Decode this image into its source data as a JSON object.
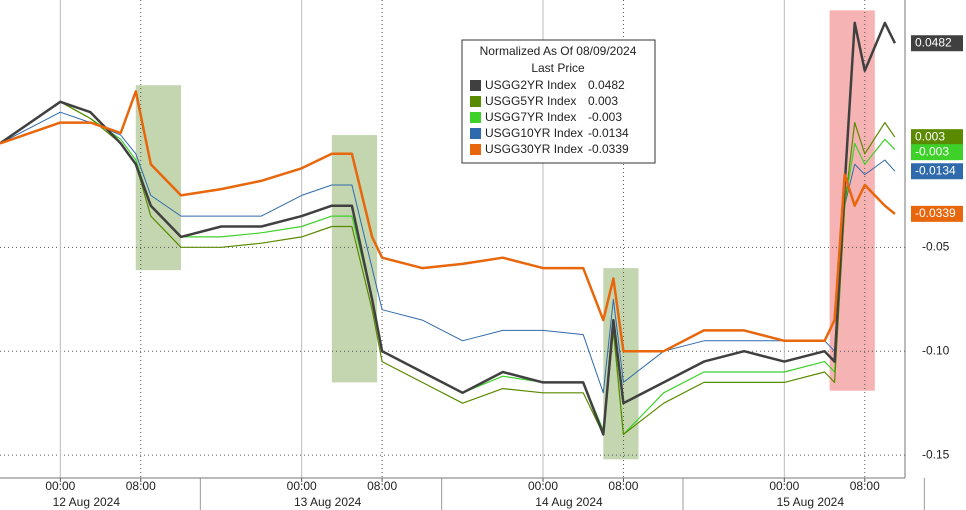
{
  "chart_data": {
    "type": "line",
    "legend_title": "Normalized As Of 08/09/2024",
    "legend_subtitle": "Last Price",
    "x": [
      "2024-08-11T18:00",
      "2024-08-12T00:00",
      "2024-08-12T03:00",
      "2024-08-12T06:00",
      "2024-08-12T07:30",
      "2024-08-12T09:00",
      "2024-08-12T12:00",
      "2024-08-12T16:00",
      "2024-08-12T20:00",
      "2024-08-13T00:00",
      "2024-08-13T03:00",
      "2024-08-13T05:00",
      "2024-08-13T07:00",
      "2024-08-13T08:00",
      "2024-08-13T12:00",
      "2024-08-13T16:00",
      "2024-08-13T20:00",
      "2024-08-14T00:00",
      "2024-08-14T04:00",
      "2024-08-14T06:00",
      "2024-08-14T07:00",
      "2024-08-14T08:00",
      "2024-08-14T12:00",
      "2024-08-14T16:00",
      "2024-08-14T20:00",
      "2024-08-15T00:00",
      "2024-08-15T04:00",
      "2024-08-15T05:00",
      "2024-08-15T06:00",
      "2024-08-15T07:00",
      "2024-08-15T08:00",
      "2024-08-15T10:00",
      "2024-08-15T11:00"
    ],
    "series": [
      {
        "name": "USGG2YR Index",
        "color": "#404040",
        "width": 2.5,
        "last": 0.0482,
        "values": [
          0,
          0.02,
          0.015,
          0.0,
          -0.01,
          -0.03,
          -0.045,
          -0.04,
          -0.04,
          -0.035,
          -0.03,
          -0.03,
          -0.075,
          -0.1,
          -0.11,
          -0.12,
          -0.11,
          -0.115,
          -0.115,
          -0.14,
          -0.085,
          -0.125,
          -0.115,
          -0.105,
          -0.1,
          -0.105,
          -0.1,
          -0.105,
          -0.02,
          0.058,
          0.035,
          0.058,
          0.0482
        ]
      },
      {
        "name": "USGG5YR Index",
        "color": "#5a8a00",
        "width": 1.2,
        "last": 0.003,
        "values": [
          0,
          0.02,
          0.012,
          0.0,
          -0.01,
          -0.035,
          -0.05,
          -0.05,
          -0.048,
          -0.045,
          -0.04,
          -0.04,
          -0.08,
          -0.105,
          -0.115,
          -0.125,
          -0.118,
          -0.12,
          -0.12,
          -0.14,
          -0.09,
          -0.14,
          -0.125,
          -0.115,
          -0.115,
          -0.115,
          -0.11,
          -0.115,
          -0.03,
          0.01,
          -0.005,
          0.01,
          0.003
        ]
      },
      {
        "name": "USGG7YR Index",
        "color": "#3ed12a",
        "width": 1.2,
        "last": -0.003,
        "values": [
          0,
          0.02,
          0.012,
          0.002,
          -0.008,
          -0.03,
          -0.045,
          -0.045,
          -0.043,
          -0.04,
          -0.035,
          -0.035,
          -0.075,
          -0.1,
          -0.11,
          -0.12,
          -0.112,
          -0.115,
          -0.115,
          -0.138,
          -0.09,
          -0.14,
          -0.12,
          -0.11,
          -0.11,
          -0.11,
          -0.105,
          -0.11,
          -0.03,
          0.0,
          -0.01,
          0.002,
          -0.003
        ]
      },
      {
        "name": "USGG10YR Index",
        "color": "#2f6aad",
        "width": 1,
        "last": -0.0134,
        "values": [
          0,
          0.015,
          0.01,
          0.004,
          -0.005,
          -0.025,
          -0.035,
          -0.035,
          -0.035,
          -0.025,
          -0.02,
          -0.02,
          -0.06,
          -0.08,
          -0.085,
          -0.095,
          -0.09,
          -0.09,
          -0.092,
          -0.12,
          -0.075,
          -0.115,
          -0.1,
          -0.095,
          -0.095,
          -0.095,
          -0.095,
          -0.1,
          -0.03,
          -0.01,
          -0.015,
          -0.008,
          -0.0134
        ]
      },
      {
        "name": "USGG30YR Index",
        "color": "#e8670c",
        "width": 2.5,
        "last": -0.0339,
        "values": [
          0,
          0.01,
          0.01,
          0.005,
          0.025,
          -0.01,
          -0.025,
          -0.022,
          -0.018,
          -0.012,
          -0.005,
          -0.005,
          -0.045,
          -0.055,
          -0.06,
          -0.058,
          -0.055,
          -0.06,
          -0.06,
          -0.085,
          -0.065,
          -0.1,
          -0.1,
          -0.09,
          -0.09,
          -0.095,
          -0.095,
          -0.085,
          -0.015,
          -0.03,
          -0.02,
          -0.03,
          -0.0339
        ]
      }
    ],
    "xlim": [
      "2024-08-11T18:00",
      "2024-08-15T12:00"
    ],
    "xticks": [
      {
        "value": "2024-08-12T00:00",
        "label": "00:00"
      },
      {
        "value": "2024-08-12T08:00",
        "label": "08:00"
      },
      {
        "value": "2024-08-13T00:00",
        "label": "00:00"
      },
      {
        "value": "2024-08-13T08:00",
        "label": "08:00"
      },
      {
        "value": "2024-08-14T00:00",
        "label": "00:00"
      },
      {
        "value": "2024-08-14T08:00",
        "label": "08:00"
      },
      {
        "value": "2024-08-15T00:00",
        "label": "00:00"
      },
      {
        "value": "2024-08-15T08:00",
        "label": "08:00"
      }
    ],
    "dates": [
      {
        "value": "2024-08-12T00:00",
        "label": "12 Aug 2024"
      },
      {
        "value": "2024-08-13T00:00",
        "label": "13 Aug 2024"
      },
      {
        "value": "2024-08-14T00:00",
        "label": "14 Aug 2024"
      },
      {
        "value": "2024-08-15T00:00",
        "label": "15 Aug 2024"
      }
    ],
    "ylim": [
      -0.161,
      0.069
    ],
    "yticks": [
      -0.15,
      {
        "value": -0.1,
        "label": "-0.10"
      },
      -0.05
    ],
    "grid": true,
    "highlights": [
      {
        "start": "2024-08-12T07:30",
        "end": "2024-08-12T12:00",
        "ylim": [
          -0.061,
          0.028
        ],
        "color": "#9dbb7c"
      },
      {
        "start": "2024-08-13T03:00",
        "end": "2024-08-13T07:30",
        "ylim": [
          -0.115,
          0.004
        ],
        "color": "#9dbb7c"
      },
      {
        "start": "2024-08-14T06:00",
        "end": "2024-08-14T09:30",
        "ylim": [
          -0.152,
          -0.06
        ],
        "color": "#9dbb7c"
      },
      {
        "start": "2024-08-15T04:30",
        "end": "2024-08-15T09:00",
        "ylim": [
          -0.119,
          0.064
        ],
        "color": "#f08080"
      }
    ]
  }
}
